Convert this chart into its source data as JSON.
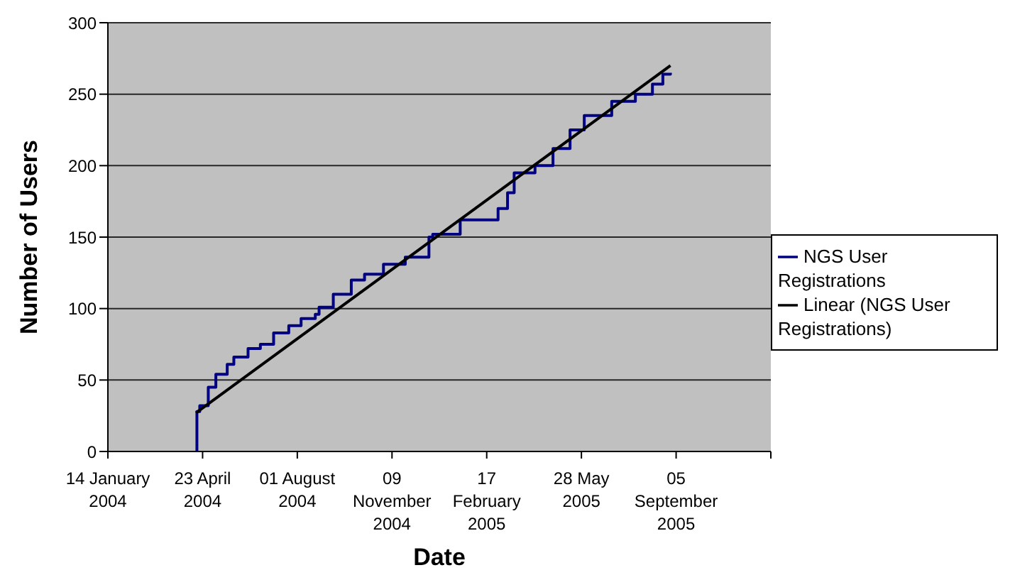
{
  "chart_data": {
    "type": "line",
    "xlabel": "Date",
    "ylabel": "Number of Users",
    "xlim": [
      "2004-01-14",
      "2005-12-14"
    ],
    "xticks": [
      {
        "value": "2004-01-14",
        "label": "14 January 2004"
      },
      {
        "value": "2004-04-23",
        "label": "23 April 2004"
      },
      {
        "value": "2004-08-01",
        "label": "01 August 2004"
      },
      {
        "value": "2004-11-09",
        "label": "09 November 2004"
      },
      {
        "value": "2005-02-17",
        "label": "17 February 2005"
      },
      {
        "value": "2005-05-28",
        "label": "28 May 2005"
      },
      {
        "value": "2005-09-05",
        "label": "05 September 2005"
      },
      {
        "value": "2005-12-14",
        "label": null
      }
    ],
    "ylim": [
      0,
      300
    ],
    "yticks": [
      0,
      50,
      100,
      150,
      200,
      250,
      300
    ],
    "grid": "y",
    "legend": "right",
    "series": [
      {
        "name": "NGS User Registrations",
        "type": "step",
        "color": "#000080",
        "x": [
          "2004-04-16",
          "2004-04-17",
          "2004-04-20",
          "2004-04-29",
          "2004-05-07",
          "2004-05-19",
          "2004-05-26",
          "2004-06-10",
          "2004-06-23",
          "2004-07-07",
          "2004-07-23",
          "2004-08-05",
          "2004-08-20",
          "2004-08-24",
          "2004-09-08",
          "2004-09-27",
          "2004-10-11",
          "2004-10-31",
          "2004-11-23",
          "2004-12-18",
          "2004-12-22",
          "2005-01-20",
          "2005-03-01",
          "2005-03-11",
          "2005-03-18",
          "2005-04-09",
          "2005-04-28",
          "2005-05-16",
          "2005-05-31",
          "2005-06-29",
          "2005-07-24",
          "2005-08-11",
          "2005-08-22",
          "2005-08-30"
        ],
        "values": [
          0,
          28,
          32,
          45,
          54,
          61,
          66,
          72,
          75,
          83,
          88,
          93,
          96,
          101,
          110,
          120,
          124,
          131,
          136,
          150,
          152,
          162,
          170,
          181,
          195,
          200,
          212,
          225,
          235,
          245,
          250,
          257,
          264,
          265
        ]
      },
      {
        "name": "Linear (NGS User Registrations)",
        "type": "line",
        "color": "#000000",
        "x": [
          "2004-04-16",
          "2005-08-30"
        ],
        "values": [
          27,
          270
        ]
      }
    ]
  }
}
